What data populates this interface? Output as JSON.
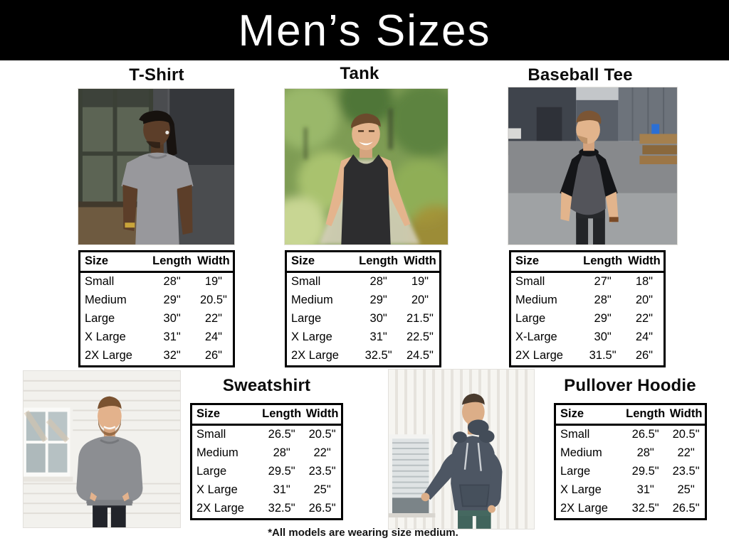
{
  "page": {
    "title": "Men’s Sizes",
    "footnote": "*All models are wearing size medium.",
    "colors": {
      "header_bg": "#000000",
      "header_text": "#ffffff",
      "body_bg": "#ffffff",
      "table_border": "#000000",
      "text": "#111111"
    }
  },
  "table_columns": [
    "Size",
    "Length",
    "Width"
  ],
  "products": [
    {
      "name": "T-Shirt",
      "photo": {
        "alt": "man-wearing-gray-t-shirt",
        "shirt_color": "#98989c",
        "skin_color": "#5c3e29"
      },
      "rows": [
        [
          "Small",
          "28\"",
          "19\""
        ],
        [
          "Medium",
          "29\"",
          "20.5\""
        ],
        [
          "Large",
          "30\"",
          "22\""
        ],
        [
          "X Large",
          "31\"",
          "24\""
        ],
        [
          "2X Large",
          "32\"",
          "26\""
        ]
      ]
    },
    {
      "name": "Tank",
      "photo": {
        "alt": "man-wearing-black-tank",
        "shirt_color": "#2d2d2f",
        "skin_color": "#e4b48d"
      },
      "rows": [
        [
          "Small",
          "28\"",
          "19\""
        ],
        [
          "Medium",
          "29\"",
          "20\""
        ],
        [
          "Large",
          "30\"",
          "21.5\""
        ],
        [
          "X Large",
          "31\"",
          "22.5\""
        ],
        [
          "2X Large",
          "32.5\"",
          "24.5\""
        ]
      ]
    },
    {
      "name": "Baseball Tee",
      "photo": {
        "alt": "man-wearing-baseball-tee",
        "shirt_color": "#53545a",
        "sleeve_color": "#141518",
        "skin_color": "#e2b48c"
      },
      "rows": [
        [
          "Small",
          "27\"",
          "18\""
        ],
        [
          "Medium",
          "28\"",
          "20\""
        ],
        [
          "Large",
          "29\"",
          "22\""
        ],
        [
          "X-Large",
          "30\"",
          "24\""
        ],
        [
          "2X Large",
          "31.5\"",
          "26\""
        ]
      ]
    },
    {
      "name": "Sweatshirt",
      "photo": {
        "alt": "man-wearing-gray-sweatshirt",
        "shirt_color": "#8c8e92",
        "skin_color": "#e3b28c"
      },
      "rows": [
        [
          "Small",
          "26.5\"",
          "20.5\""
        ],
        [
          "Medium",
          "28\"",
          "22\""
        ],
        [
          "Large",
          "29.5\"",
          "23.5\""
        ],
        [
          "X Large",
          "31\"",
          "25\""
        ],
        [
          "2X Large",
          "32.5\"",
          "26.5\""
        ]
      ]
    },
    {
      "name": "Pullover Hoodie",
      "photo": {
        "alt": "man-wearing-pullover-hoodie",
        "shirt_color": "#4d5663",
        "skin_color": "#dcae88"
      },
      "rows": [
        [
          "Small",
          "26.5\"",
          "20.5\""
        ],
        [
          "Medium",
          "28\"",
          "22\""
        ],
        [
          "Large",
          "29.5\"",
          "23.5\""
        ],
        [
          "X Large",
          "31\"",
          "25\""
        ],
        [
          "2X Large",
          "32.5\"",
          "26.5\""
        ]
      ]
    }
  ]
}
